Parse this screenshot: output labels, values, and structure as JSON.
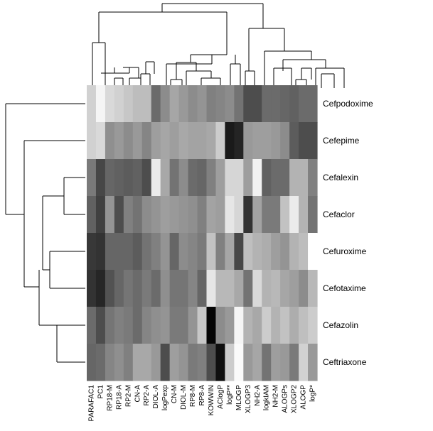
{
  "chart_data": {
    "type": "heatmap",
    "colormap": "grayscale",
    "rows": [
      "Cefpodoxime",
      "Cefepime",
      "Cefalexin",
      "Cefaclor",
      "Cefuroxime",
      "Cefotaxime",
      "Cefazolin",
      "Ceftriaxone"
    ],
    "columns": [
      "PARAFAC1",
      "PC1",
      "RP18-M",
      "RP18-A",
      "RP2-M",
      "CN-A",
      "RP2-A",
      "DIOL-A",
      "logPexp",
      "CN-M",
      "DIOL-M",
      "RP8-M",
      "RP8-A",
      "KOWWIN",
      "AClogP",
      "logP**",
      "MLOGP",
      "XLOGP3",
      "NH2-A",
      "logkIAM",
      "NH2-M",
      "ALOGPs",
      "XLOGP2",
      "ALOGP",
      "logP*"
    ],
    "values": [
      [
        0.82,
        0.96,
        0.85,
        0.82,
        0.78,
        0.74,
        0.74,
        0.42,
        0.55,
        0.65,
        0.6,
        0.55,
        0.58,
        0.5,
        0.52,
        0.55,
        0.45,
        0.3,
        0.3,
        0.42,
        0.42,
        0.4,
        0.38,
        0.42,
        0.42
      ],
      [
        0.82,
        0.85,
        0.56,
        0.6,
        0.55,
        0.6,
        0.52,
        0.62,
        0.65,
        0.62,
        0.66,
        0.64,
        0.64,
        0.66,
        0.8,
        0.1,
        0.14,
        0.6,
        0.62,
        0.62,
        0.6,
        0.55,
        0.36,
        0.3,
        0.3
      ],
      [
        0.48,
        0.28,
        0.4,
        0.38,
        0.36,
        0.38,
        0.3,
        0.92,
        0.66,
        0.45,
        0.55,
        0.42,
        0.4,
        0.5,
        0.62,
        0.84,
        0.84,
        0.62,
        0.95,
        0.38,
        0.42,
        0.42,
        0.7,
        0.7,
        0.5
      ],
      [
        0.38,
        0.25,
        0.58,
        0.3,
        0.5,
        0.45,
        0.55,
        0.58,
        0.62,
        0.6,
        0.58,
        0.56,
        0.5,
        0.64,
        0.62,
        0.9,
        0.84,
        0.2,
        0.64,
        0.48,
        0.48,
        0.76,
        0.92,
        0.7,
        0.45
      ],
      [
        0.22,
        0.2,
        0.4,
        0.4,
        0.4,
        0.36,
        0.45,
        0.5,
        0.58,
        0.4,
        0.55,
        0.52,
        0.48,
        0.76,
        0.5,
        0.65,
        0.28,
        0.75,
        0.7,
        0.68,
        0.62,
        0.58,
        0.7,
        0.74,
        1.0
      ],
      [
        0.2,
        0.15,
        0.32,
        0.4,
        0.46,
        0.42,
        0.48,
        0.42,
        0.56,
        0.46,
        0.46,
        0.52,
        0.4,
        0.9,
        0.72,
        0.72,
        0.66,
        0.45,
        0.85,
        0.7,
        0.72,
        0.65,
        0.62,
        0.55,
        0.72
      ],
      [
        0.42,
        0.3,
        0.46,
        0.5,
        0.48,
        0.42,
        0.52,
        0.56,
        0.58,
        0.48,
        0.48,
        0.58,
        0.78,
        0.02,
        0.55,
        0.6,
        0.96,
        0.7,
        0.66,
        0.8,
        0.7,
        0.76,
        0.68,
        0.75,
        0.8
      ],
      [
        0.4,
        0.42,
        0.52,
        0.56,
        0.5,
        0.66,
        0.66,
        0.6,
        0.3,
        0.62,
        0.58,
        0.48,
        0.5,
        0.3,
        0.06,
        0.8,
        0.98,
        0.6,
        0.65,
        0.45,
        0.62,
        0.6,
        0.48,
        0.82,
        0.6
      ]
    ],
    "colorbar": false,
    "legend": "none"
  }
}
